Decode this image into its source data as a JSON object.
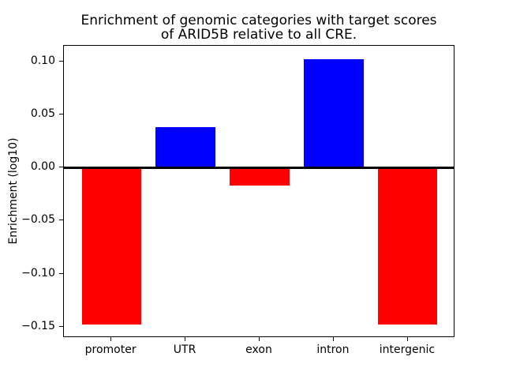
{
  "chart_data": {
    "type": "bar",
    "title": "Enrichment of genomic categories with target scores of ARID5B relative to all CRE.",
    "title_lines": [
      "Enrichment of genomic categories with target scores",
      "of ARID5B relative to all CRE."
    ],
    "xlabel": "",
    "ylabel": "Enrichment (log10)",
    "categories": [
      "promoter",
      "UTR",
      "exon",
      "intron",
      "intergenic"
    ],
    "values": [
      -0.148,
      0.038,
      -0.017,
      0.102,
      -0.148
    ],
    "bar_colors": [
      "#ff0000",
      "#0000ff",
      "#ff0000",
      "#0000ff",
      "#ff0000"
    ],
    "positive_color": "#0000ff",
    "negative_color": "#ff0000",
    "x": [
      0,
      1,
      2,
      3,
      4
    ],
    "xlim": [
      -0.64,
      4.64
    ],
    "bar_width": 0.8,
    "ylim": [
      -0.1605,
      0.1145
    ],
    "yticks": [
      0.1,
      0.05,
      0.0,
      -0.05,
      -0.1,
      -0.15
    ],
    "ytick_labels": [
      "0.10",
      "0.05",
      "0.00",
      "−0.05",
      "−0.10",
      "−0.15"
    ],
    "zero_line": true,
    "zero_line_color": "#000000",
    "grid": false,
    "legend_position": "none",
    "background_color": "#ffffff",
    "axis_color": "#000000"
  }
}
